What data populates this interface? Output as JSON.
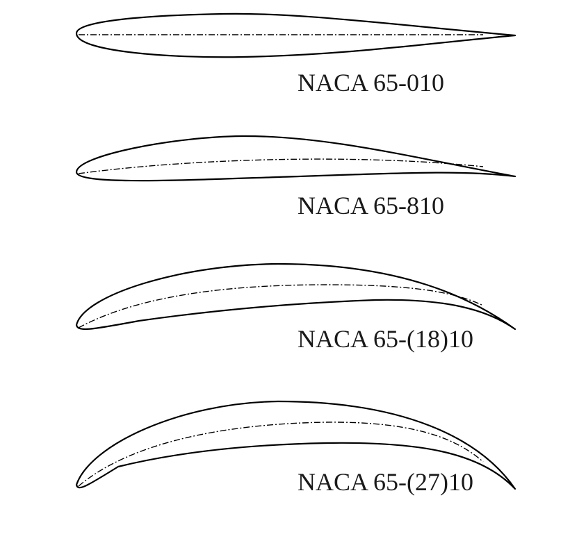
{
  "airfoils": [
    {
      "label": "NACA 65-010"
    },
    {
      "label": "NACA 65-810"
    },
    {
      "label": "NACA 65-(18)10"
    },
    {
      "label": "NACA 65-(27)10"
    }
  ],
  "colors": {
    "stroke": "#000000",
    "text": "#1a1a1a",
    "background": "#ffffff"
  }
}
